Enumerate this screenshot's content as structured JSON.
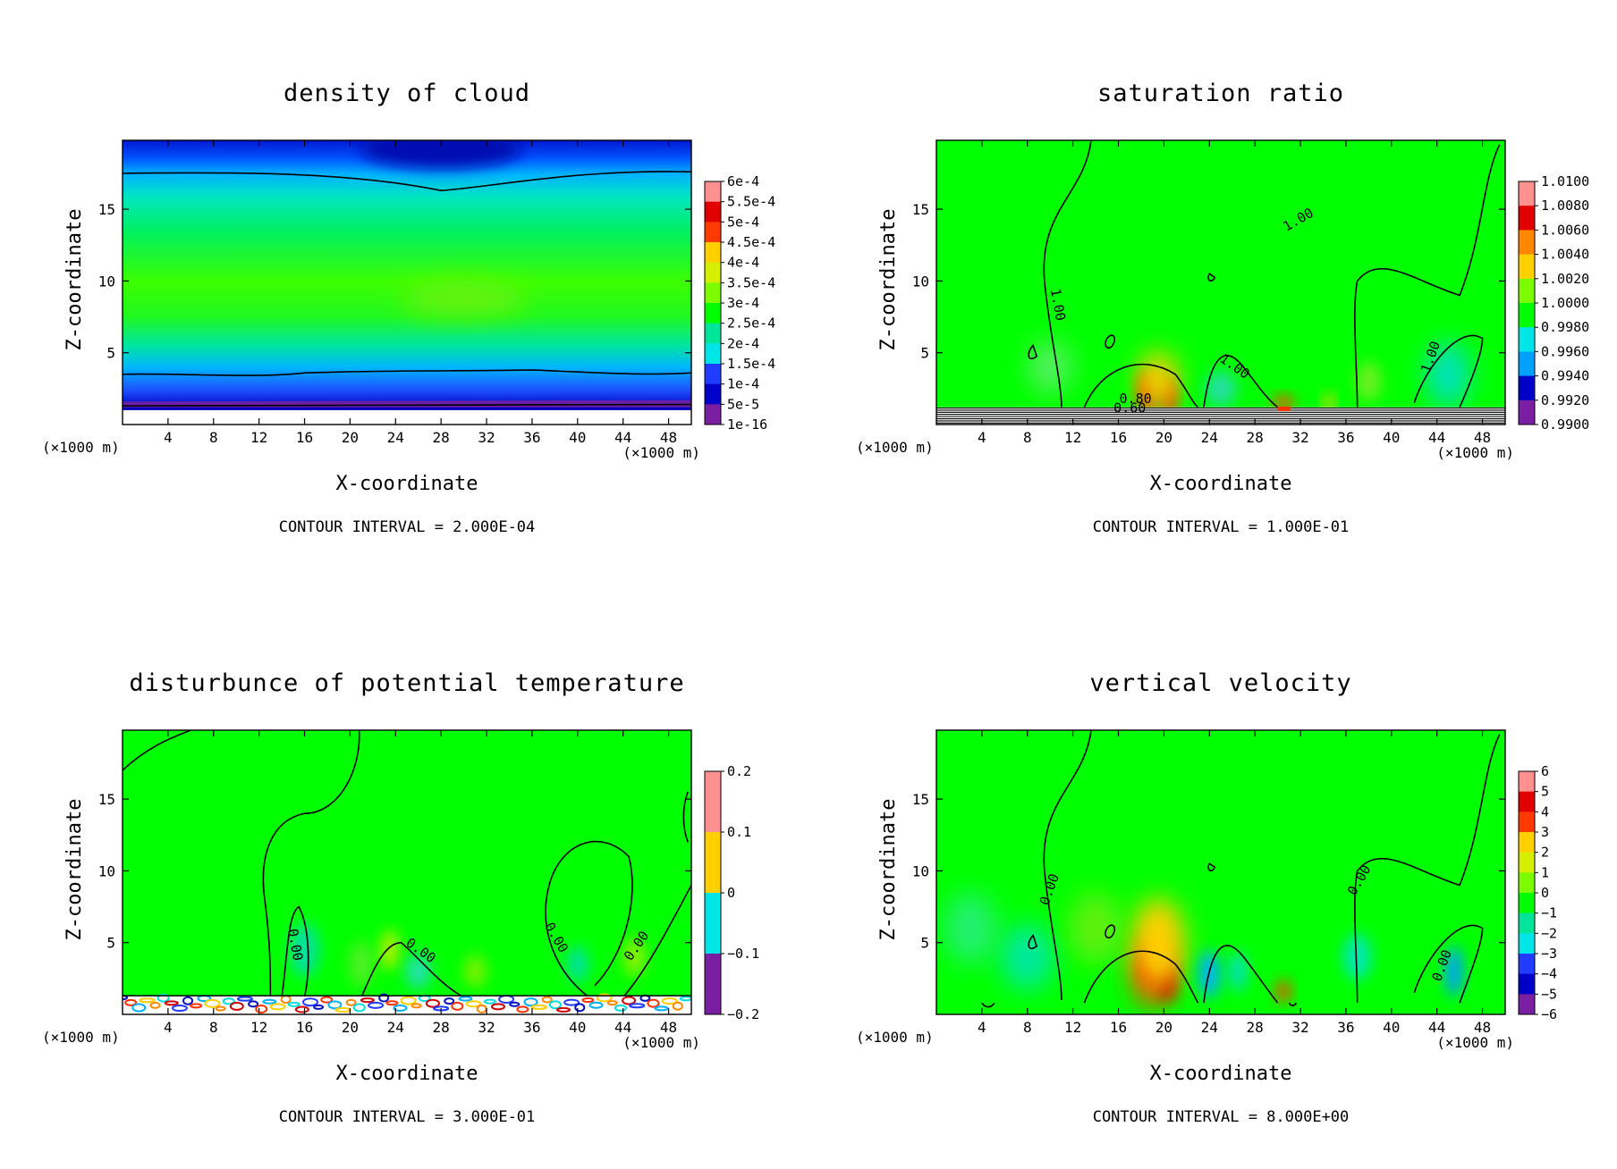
{
  "figure": {
    "colors": {
      "background": "#00ff00",
      "palette": [
        "#7b1fa2",
        "#0000c8",
        "#1f3cff",
        "#00a0ff",
        "#00e5e5",
        "#00e59a",
        "#00ff00",
        "#7cfc00",
        "#d4f000",
        "#ffd000",
        "#ff8800",
        "#ff3a00",
        "#e00000",
        "#ff9090"
      ]
    }
  },
  "chart_data": [
    {
      "type": "contour",
      "id": "cloud",
      "title": "density of cloud",
      "xlabel": "X-coordinate",
      "ylabel": "Z-coordinate",
      "x_unit": "(×1000 m)",
      "y_unit": "(×1000 m)",
      "xlim": [
        0,
        50
      ],
      "ylim": [
        0,
        19.8
      ],
      "xticks": [
        4,
        8,
        12,
        16,
        20,
        24,
        28,
        32,
        36,
        40,
        44,
        48
      ],
      "yticks": [
        5,
        10,
        15
      ],
      "contour_interval_text": "CONTOUR INTERVAL = 2.000E-04",
      "colorbar_labels": [
        "6e-4",
        "5.5e-4",
        "5e-4",
        "4.5e-4",
        "4e-4",
        "3.5e-4",
        "3e-4",
        "2.5e-4",
        "2e-4",
        "1.5e-4",
        "1e-4",
        "5e-5",
        "1e-16"
      ],
      "contour_labels": []
    },
    {
      "type": "contour",
      "id": "saturation",
      "title": "saturation ratio",
      "xlabel": "X-coordinate",
      "ylabel": "Z-coordinate",
      "x_unit": "(×1000 m)",
      "y_unit": "(×1000 m)",
      "xlim": [
        0,
        50
      ],
      "ylim": [
        0,
        19.8
      ],
      "xticks": [
        4,
        8,
        12,
        16,
        20,
        24,
        28,
        32,
        36,
        40,
        44,
        48
      ],
      "yticks": [
        5,
        10,
        15
      ],
      "contour_interval_text": "CONTOUR INTERVAL = 1.000E-01",
      "colorbar_labels": [
        "1.0100",
        "1.0080",
        "1.0060",
        "1.0040",
        "1.0020",
        "1.0000",
        "0.9980",
        "0.9960",
        "0.9940",
        "0.9920",
        "0.9900"
      ],
      "contour_labels": [
        "1.00",
        "1.00",
        "1.00",
        "1.00",
        "0.80",
        "0.60"
      ]
    },
    {
      "type": "contour",
      "id": "theta",
      "title": "disturbunce of potential temperature",
      "xlabel": "X-coordinate",
      "ylabel": "Z-coordinate",
      "x_unit": "(×1000 m)",
      "y_unit": "(×1000 m)",
      "xlim": [
        0,
        50
      ],
      "ylim": [
        0,
        19.8
      ],
      "xticks": [
        4,
        8,
        12,
        16,
        20,
        24,
        28,
        32,
        36,
        40,
        44,
        48
      ],
      "yticks": [
        5,
        10,
        15
      ],
      "contour_interval_text": "CONTOUR INTERVAL = 3.000E-01",
      "colorbar_labels": [
        "0.2",
        "0.1",
        "0",
        "−0.1",
        "−0.2"
      ],
      "contour_labels": [
        "0.00",
        "0.00",
        "0.00",
        "0.00"
      ]
    },
    {
      "type": "contour",
      "id": "wvel",
      "title": "vertical velocity",
      "xlabel": "X-coordinate",
      "ylabel": "Z-coordinate",
      "x_unit": "(×1000 m)",
      "y_unit": "(×1000 m)",
      "xlim": [
        0,
        50
      ],
      "ylim": [
        0,
        19.8
      ],
      "xticks": [
        4,
        8,
        12,
        16,
        20,
        24,
        28,
        32,
        36,
        40,
        44,
        48
      ],
      "yticks": [
        5,
        10,
        15
      ],
      "contour_interval_text": "CONTOUR INTERVAL = 8.000E+00",
      "colorbar_labels": [
        "6",
        "5",
        "4",
        "3",
        "2",
        "1",
        "0",
        "−1",
        "−2",
        "−3",
        "−4",
        "−5",
        "−6"
      ],
      "contour_labels": [
        "0.00",
        "0.00",
        "0.00"
      ]
    }
  ]
}
